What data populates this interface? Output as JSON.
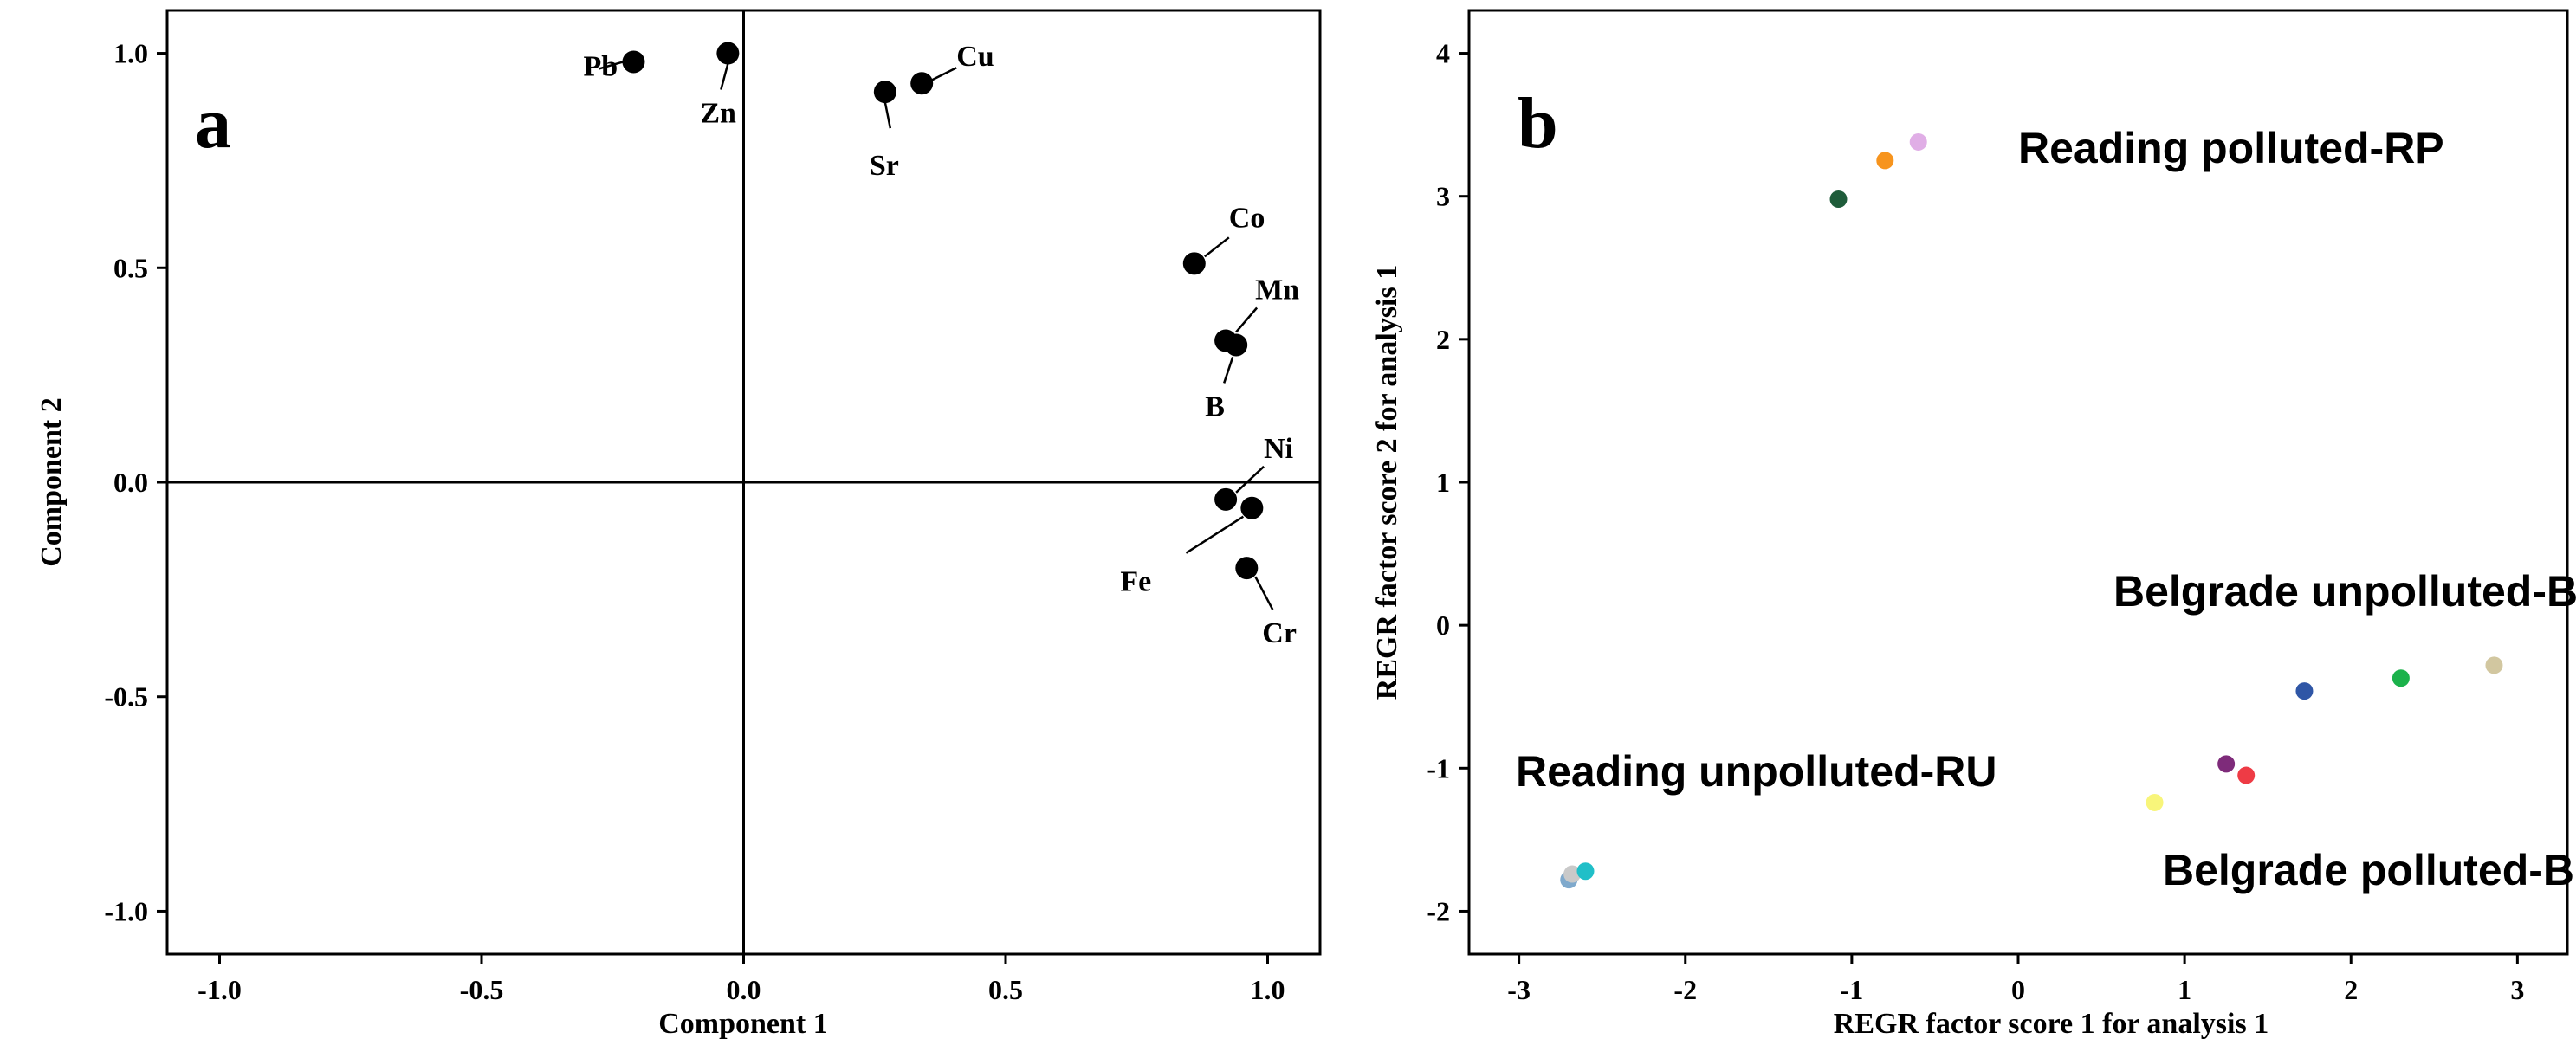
{
  "chart_data": [
    {
      "type": "scatter",
      "panel_letter": "a",
      "xlabel": "Component 1",
      "ylabel": "Component 2",
      "xlim": [
        -1.1,
        1.1
      ],
      "ylim": [
        -1.1,
        1.1
      ],
      "xticks": [
        -1.0,
        -0.5,
        0.0,
        0.5,
        1.0
      ],
      "yticks": [
        -1.0,
        -0.5,
        0.0,
        0.5,
        1.0
      ],
      "xtick_labels": [
        "-1.0",
        "-0.5",
        "0.0",
        "0.5",
        "1.0"
      ],
      "ytick_labels": [
        "-1.0",
        "-0.5",
        "0.0",
        "0.5",
        "1.0"
      ],
      "reference_lines": {
        "x": 0,
        "y": 0
      },
      "grid": false,
      "points": [
        {
          "label": "Pb",
          "x": -0.21,
          "y": 0.98
        },
        {
          "label": "Zn",
          "x": -0.03,
          "y": 1.0
        },
        {
          "label": "Sr",
          "x": 0.27,
          "y": 0.91
        },
        {
          "label": "Cu",
          "x": 0.34,
          "y": 0.93
        },
        {
          "label": "Co",
          "x": 0.86,
          "y": 0.51
        },
        {
          "label": "Mn",
          "x": 0.92,
          "y": 0.33
        },
        {
          "label": "B",
          "x": 0.94,
          "y": 0.32
        },
        {
          "label": "Ni",
          "x": 0.92,
          "y": -0.04
        },
        {
          "label": "Fe",
          "x": 0.97,
          "y": -0.06
        },
        {
          "label": "Cr",
          "x": 0.96,
          "y": -0.2
        }
      ],
      "marker_color": "#000000"
    },
    {
      "type": "scatter",
      "panel_letter": "b",
      "xlabel": "REGR factor score   1 for analysis 1",
      "ylabel": "REGR factor score   2 for analysis 1",
      "xlim": [
        -3.3,
        3.3
      ],
      "ylim": [
        -2.3,
        4.3
      ],
      "xticks": [
        -3,
        -2,
        -1,
        0,
        1,
        2,
        3
      ],
      "yticks": [
        -2,
        -1,
        0,
        1,
        2,
        3,
        4
      ],
      "xtick_labels": [
        "-3",
        "-2",
        "-1",
        "0",
        "1",
        "2",
        "3"
      ],
      "ytick_labels": [
        "-2",
        "-1",
        "0",
        "1",
        "2",
        "3",
        "4"
      ],
      "grid": false,
      "group_labels": [
        "Reading polluted-RP",
        "Belgrade unpolluted-BU",
        "Reading unpolluted-RU",
        "Belgrade polluted-BP"
      ],
      "points": [
        {
          "x": -1.08,
          "y": 2.98,
          "color": "#1e5c3a"
        },
        {
          "x": -0.8,
          "y": 3.25,
          "color": "#f7941d"
        },
        {
          "x": -0.6,
          "y": 3.38,
          "color": "#e0aee6"
        },
        {
          "x": 1.72,
          "y": -0.46,
          "color": "#2f56a6"
        },
        {
          "x": 2.3,
          "y": -0.37,
          "color": "#1bb24b"
        },
        {
          "x": 2.86,
          "y": -0.28,
          "color": "#d2c7a0"
        },
        {
          "x": 1.25,
          "y": -0.97,
          "color": "#7e2b7a"
        },
        {
          "x": 1.37,
          "y": -1.05,
          "color": "#ee3b45"
        },
        {
          "x": 0.82,
          "y": -1.24,
          "color": "#f8f57a"
        },
        {
          "x": -2.7,
          "y": -1.78,
          "color": "#7fa9cc"
        },
        {
          "x": -2.68,
          "y": -1.74,
          "color": "#c9c9c9"
        },
        {
          "x": -2.6,
          "y": -1.72,
          "color": "#20bfc8"
        }
      ]
    }
  ]
}
